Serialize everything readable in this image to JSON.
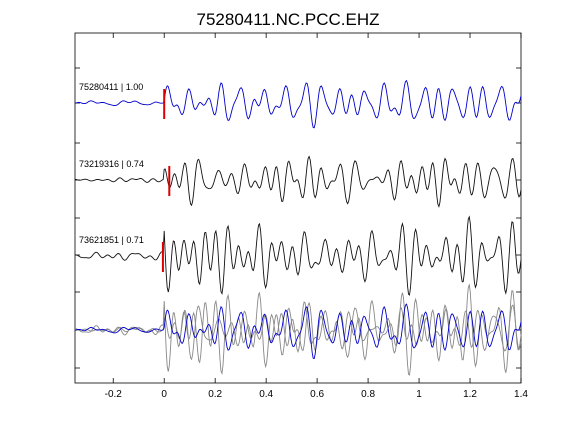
{
  "chart_data": {
    "type": "line",
    "title": "75280411.NC.PCC.EHZ",
    "xlabel": "",
    "ylabel": "",
    "xlim": [
      -0.35,
      1.4
    ],
    "xticks": [
      -0.2,
      0,
      0.2,
      0.4,
      0.6,
      0.8,
      1,
      1.2,
      1.4
    ],
    "xtick_labels": [
      "-0.2",
      "0",
      "0.2",
      "0.4",
      "0.6",
      "0.8",
      "1",
      "1.2",
      "1.4"
    ],
    "grid": false,
    "pick_color": "#dd0000",
    "traces": [
      {
        "label": "75280411 | 1.00",
        "color": "#0000cc",
        "pick_time": 0.0,
        "seed": 11
      },
      {
        "label": "73219316 | 0.74",
        "color": "#111111",
        "pick_time": 0.02,
        "seed": 23
      },
      {
        "label": "73621851 | 0.71",
        "color": "#111111",
        "pick_time": -0.005,
        "seed": 37
      }
    ],
    "stack": {
      "description_hidden": true,
      "series": [
        {
          "color": "#888888",
          "seed": 23
        },
        {
          "color": "#888888",
          "seed": 37
        },
        {
          "color": "#0000cc",
          "seed": 11
        }
      ]
    }
  }
}
